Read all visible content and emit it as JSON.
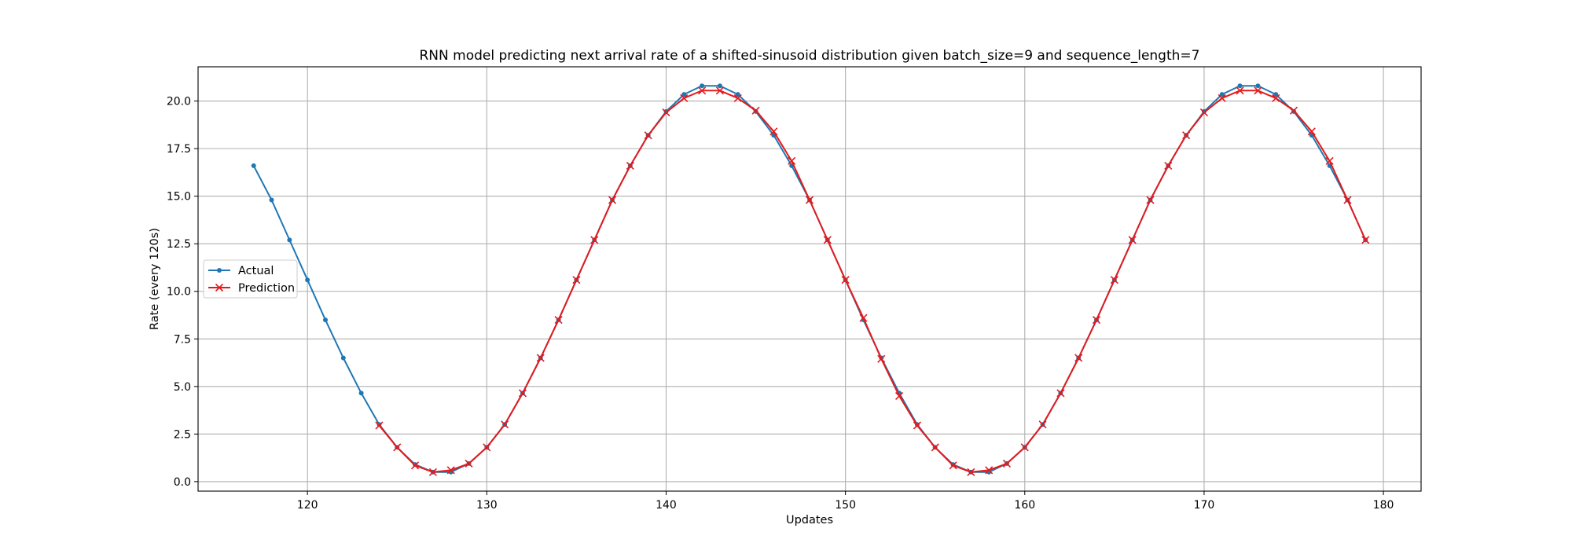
{
  "chart_data": {
    "type": "line",
    "title": "RNN model predicting next arrival rate of a shifted-sinusoid distribution given batch_size=9 and sequence_length=7",
    "xlabel": "Updates",
    "ylabel": "Rate (every 120s)",
    "xlim": [
      113.9,
      182.1
    ],
    "ylim": [
      -0.5,
      21.8
    ],
    "xticks": [
      120,
      130,
      140,
      150,
      160,
      170,
      180
    ],
    "xtick_labels": [
      "120",
      "130",
      "140",
      "150",
      "160",
      "170",
      "180"
    ],
    "yticks": [
      0,
      2.5,
      5,
      7.5,
      10,
      12.5,
      15,
      17.5,
      20
    ],
    "ytick_labels": [
      "0.0",
      "2.5",
      "5.0",
      "7.5",
      "10.0",
      "12.5",
      "15.0",
      "17.5",
      "20.0"
    ],
    "grid": true,
    "legend_position": "center-left",
    "series": [
      {
        "name": "Actual",
        "color": "#1f77b4",
        "marker": "dot",
        "x": [
          117,
          118,
          119,
          120,
          121,
          122,
          123,
          124,
          125,
          126,
          127,
          128,
          129,
          130,
          131,
          132,
          133,
          134,
          135,
          136,
          137,
          138,
          139,
          140,
          141,
          142,
          143,
          144,
          145,
          146,
          147,
          148,
          149,
          150,
          151,
          152,
          153,
          154,
          155,
          156,
          157,
          158,
          159,
          160,
          161,
          162,
          163,
          164,
          165,
          166,
          167,
          168,
          169,
          170,
          171,
          172,
          173,
          174,
          175,
          176,
          177,
          178,
          179
        ],
        "values": [
          16.6,
          14.8,
          12.7,
          10.6,
          8.5,
          6.5,
          4.65,
          3.0,
          1.8,
          0.9,
          0.5,
          0.5,
          0.95,
          1.8,
          3.0,
          4.65,
          6.5,
          8.5,
          10.6,
          12.7,
          14.8,
          16.6,
          18.2,
          19.45,
          20.35,
          20.8,
          20.8,
          20.35,
          19.45,
          18.2,
          16.6,
          14.8,
          12.7,
          10.6,
          8.5,
          6.5,
          4.65,
          3.0,
          1.8,
          0.9,
          0.5,
          0.5,
          0.95,
          1.8,
          3.0,
          4.65,
          6.5,
          8.5,
          10.6,
          12.7,
          14.8,
          16.6,
          18.2,
          19.45,
          20.35,
          20.8,
          20.8,
          20.35,
          19.45,
          18.2,
          16.6,
          14.8,
          12.7
        ]
      },
      {
        "name": "Prediction",
        "color": "#e41a1c",
        "marker": "x",
        "x": [
          124,
          125,
          126,
          127,
          128,
          129,
          130,
          131,
          132,
          133,
          134,
          135,
          136,
          137,
          138,
          139,
          140,
          141,
          142,
          143,
          144,
          145,
          146,
          147,
          148,
          149,
          150,
          151,
          152,
          153,
          154,
          155,
          156,
          157,
          158,
          159,
          160,
          161,
          162,
          163,
          164,
          165,
          166,
          167,
          168,
          169,
          170,
          171,
          172,
          173,
          174,
          175,
          176,
          177,
          178,
          179
        ],
        "values": [
          2.95,
          1.8,
          0.85,
          0.5,
          0.6,
          0.95,
          1.8,
          3.0,
          4.65,
          6.5,
          8.5,
          10.6,
          12.7,
          14.8,
          16.6,
          18.2,
          19.4,
          20.15,
          20.55,
          20.55,
          20.15,
          19.5,
          18.4,
          16.85,
          14.8,
          12.7,
          10.6,
          8.6,
          6.45,
          4.5,
          2.95,
          1.8,
          0.85,
          0.5,
          0.6,
          0.95,
          1.8,
          3.0,
          4.65,
          6.5,
          8.5,
          10.6,
          12.7,
          14.8,
          16.6,
          18.2,
          19.4,
          20.15,
          20.55,
          20.55,
          20.15,
          19.5,
          18.4,
          16.85,
          14.8,
          12.7
        ]
      }
    ]
  }
}
